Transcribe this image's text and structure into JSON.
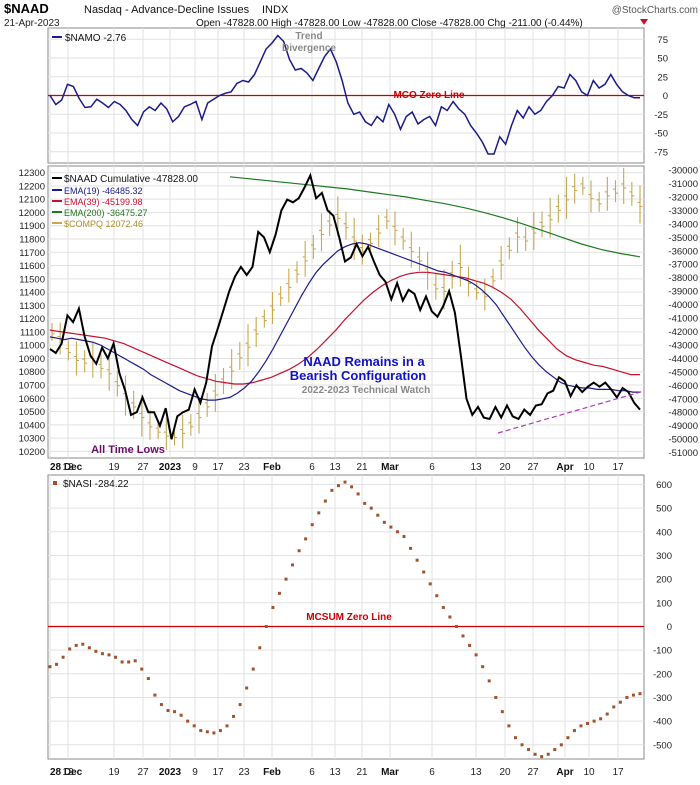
{
  "header": {
    "symbol": "$NAAD",
    "description": "Nasdaq - Advance-Decline Issues",
    "exchange": "INDX",
    "date": "21-Apr-2023",
    "quote_line": "Open -47828.00   High -47828.00   Low -47828.00   Close -47828.00   Chg -211.00 (-0.44%)",
    "watermark": "@StockCharts.com"
  },
  "colors": {
    "naad": "#000000",
    "namo": "#1a1a8c",
    "ema19": "#1a1a8c",
    "ema39": "#c8102e",
    "ema200": "#1e7a1e",
    "compq": "#c8a850",
    "nasi": "#a0522d",
    "zero_line": "#cc0000",
    "annot_blue": "#1010c8",
    "annot_purple": "#6a0d6a",
    "trend_dash": "#b03ab0",
    "grid": "#e2e2e2"
  },
  "chart_data": [
    {
      "type": "line",
      "title": "$NAMO -2.76",
      "series": [
        {
          "name": "$NAMO",
          "values": [
            0,
            -12,
            -6,
            15,
            12,
            -4,
            -16,
            -15,
            -5,
            -10,
            -16,
            -8,
            -12,
            -20,
            -32,
            -40,
            -22,
            -15,
            -20,
            -10,
            -18,
            -35,
            -28,
            -15,
            -12,
            -8,
            -32,
            -10,
            -5,
            0,
            3,
            5,
            16,
            20,
            18,
            28,
            45,
            62,
            70,
            80,
            72,
            48,
            34,
            36,
            30,
            20,
            36,
            52,
            62,
            45,
            20,
            -10,
            -25,
            -22,
            -35,
            -40,
            -28,
            -35,
            -12,
            -25,
            -45,
            -28,
            -22,
            -38,
            -32,
            -28,
            -40,
            -15,
            -20,
            -8,
            -18,
            -25,
            -40,
            -50,
            -62,
            -78,
            -78,
            -55,
            -65,
            -40,
            -20,
            -30,
            -15,
            -25,
            -20,
            -8,
            0,
            12,
            10,
            28,
            20,
            5,
            0,
            20,
            10,
            15,
            28,
            15,
            5,
            0,
            -3,
            -3
          ]
        }
      ],
      "ylim": [
        -90,
        90
      ],
      "yticks": [
        75,
        50,
        25,
        0,
        -25,
        -50,
        -75
      ],
      "annotations": [
        "Trend",
        "Divergence",
        "MCO Zero Line"
      ]
    },
    {
      "type": "line",
      "title": "$NAAD Cumulative -47828.00",
      "x_ticks": [
        "28 Dec",
        "12",
        "19",
        "27",
        "2023",
        "9",
        "17",
        "23",
        "Feb",
        "6",
        "13",
        "21",
        "Mar",
        "6",
        "13",
        "20",
        "27",
        "Apr",
        "10",
        "17"
      ],
      "ylim_left": [
        10150,
        12350
      ],
      "yticks_left": [
        12300,
        12200,
        12100,
        12000,
        11900,
        11800,
        11700,
        11600,
        11500,
        11400,
        11300,
        11200,
        11100,
        11000,
        10900,
        10800,
        10700,
        10600,
        10500,
        10400,
        10300,
        10200
      ],
      "ylim_right": [
        -51400,
        -29700
      ],
      "yticks_right": [
        -30000,
        -31000,
        -32000,
        -33000,
        -34000,
        -35000,
        -36000,
        -37000,
        -38000,
        -39000,
        -40000,
        -41000,
        -42000,
        -43000,
        -44000,
        -45000,
        -46000,
        -47000,
        -48000,
        -49000,
        -50000,
        -51000
      ],
      "legend": [
        "$NAAD Cumulative -47828.00",
        "EMA(19) -46485.32",
        "EMA(39) -45199.98",
        "EMA(200) -36475.27",
        "$COMPQ 12072.46"
      ],
      "series": [
        {
          "name": "$NAAD Cumulative",
          "values": [
            -43300,
            -43600,
            -42900,
            -40800,
            -41300,
            -40300,
            -42400,
            -43800,
            -44400,
            -43200,
            -44000,
            -42900,
            -45100,
            -46400,
            -48200,
            -48000,
            -46900,
            -48000,
            -48000,
            -49000,
            -47700,
            -50000,
            -48300,
            -48000,
            -47800,
            -46300,
            -47300,
            -45800,
            -43100,
            -41800,
            -40400,
            -39000,
            -37900,
            -37200,
            -37800,
            -37200,
            -34600,
            -35000,
            -36100,
            -34800,
            -33000,
            -32200,
            -32400,
            -32100,
            -31300,
            -30400,
            -32100,
            -31700,
            -33000,
            -33400,
            -35000,
            -36800,
            -36500,
            -35500,
            -36400,
            -35700,
            -36800,
            -37800,
            -38300,
            -39600,
            -38400,
            -39700,
            -38900,
            -39200,
            -40400,
            -39400,
            -40500,
            -40900,
            -40100,
            -39000,
            -40600,
            -43700,
            -47000,
            -48200,
            -47600,
            -48400,
            -48500,
            -47600,
            -48400,
            -47500,
            -48300,
            -48500,
            -47800,
            -48200,
            -47500,
            -47400,
            -46600,
            -46400,
            -45400,
            -45700,
            -46800,
            -46000,
            -46500,
            -46100,
            -45800,
            -46100,
            -45800,
            -46300,
            -46900,
            -46200,
            -46500,
            -47300,
            -47800
          ]
        },
        {
          "name": "EMA(19)",
          "values": [
            -42400,
            -42500,
            -42600,
            -42500,
            -42600,
            -42700,
            -42800,
            -43000,
            -43300,
            -43600,
            -43900,
            -44200,
            -44500,
            -44800,
            -45200,
            -45500,
            -45800,
            -46100,
            -46400,
            -46600,
            -46800,
            -47000,
            -47100,
            -47100,
            -47000,
            -46900,
            -46600,
            -46200,
            -45700,
            -45000,
            -44200,
            -43300,
            -42300,
            -41300,
            -40300,
            -39300,
            -38400,
            -37600,
            -37000,
            -36500,
            -36000,
            -35700,
            -35500,
            -35400,
            -35500,
            -35700,
            -35900,
            -36100,
            -36300,
            -36500,
            -36700,
            -36900,
            -37100,
            -37300,
            -37500,
            -37600,
            -37800,
            -38000,
            -38200,
            -38500,
            -38900,
            -39400,
            -40000,
            -40800,
            -41600,
            -42400,
            -43200,
            -43900,
            -44500,
            -45000,
            -45400,
            -45800,
            -46000,
            -46100,
            -46200,
            -46200,
            -46300,
            -46300,
            -46300,
            -46400,
            -46400,
            -46500,
            -46500
          ]
        },
        {
          "name": "EMA(39)",
          "values": [
            -41900,
            -42000,
            -42100,
            -42200,
            -42300,
            -42400,
            -42500,
            -42700,
            -42900,
            -43200,
            -43500,
            -43800,
            -44100,
            -44400,
            -44700,
            -45000,
            -45300,
            -45500,
            -45700,
            -45800,
            -45900,
            -45900,
            -45800,
            -45600,
            -45400,
            -45100,
            -44800,
            -44400,
            -43900,
            -43300,
            -42600,
            -41900,
            -41100,
            -40400,
            -39700,
            -39100,
            -38600,
            -38200,
            -37900,
            -37700,
            -37600,
            -37600,
            -37700,
            -37800,
            -37900,
            -38000,
            -38200,
            -38400,
            -38700,
            -39100,
            -39600,
            -40300,
            -41100,
            -41900,
            -42600,
            -43300,
            -43800,
            -44100,
            -44300,
            -44500,
            -44600,
            -44800,
            -45000,
            -45200,
            -45200
          ]
        },
        {
          "name": "EMA(200)",
          "values": [
            -30500,
            -30650,
            -30800,
            -30950,
            -31100,
            -31250,
            -31400,
            -31600,
            -31800,
            -32000,
            -32250,
            -32500,
            -32800,
            -33150,
            -33550,
            -34000,
            -34500,
            -35000,
            -35500,
            -35900,
            -36200,
            -36450
          ]
        },
        {
          "name": "$COMPQ",
          "values": [
            11100,
            11050,
            10960,
            10900,
            10880,
            10890,
            10840,
            10800,
            10710,
            10620,
            10550,
            10470,
            10400,
            10360,
            10330,
            10320,
            10350,
            10400,
            10470,
            10550,
            10640,
            10730,
            10820,
            10920,
            11000,
            11100,
            11200,
            11280,
            11370,
            11450,
            11550,
            11650,
            11740,
            11850,
            11920,
            11970,
            11900,
            11800,
            11720,
            11780,
            11860,
            11950,
            11880,
            11800,
            11720,
            11650,
            11560,
            11440,
            11420,
            11530,
            11600,
            11480,
            11410,
            11380,
            11500,
            11620,
            11730,
            11830,
            11800,
            11860,
            11910,
            11960,
            12030,
            12110,
            12180,
            12200,
            12120,
            12080,
            12140,
            12160,
            12200,
            12140,
            12060
          ]
        }
      ],
      "annotations": [
        "NAAD Remains in a",
        "Bearish Configuration",
        "2022-2023 Technical Watch",
        "All Time Lows"
      ]
    },
    {
      "type": "scatter",
      "title": "$NASI -284.22",
      "series": [
        {
          "name": "$NASI",
          "values": [
            -170,
            -160,
            -130,
            -95,
            -80,
            -75,
            -90,
            -105,
            -115,
            -120,
            -130,
            -150,
            -150,
            -145,
            -180,
            -220,
            -290,
            -330,
            -355,
            -360,
            -375,
            -400,
            -420,
            -440,
            -445,
            -450,
            -440,
            -420,
            -380,
            -330,
            -260,
            -180,
            -90,
            0,
            80,
            140,
            200,
            260,
            320,
            370,
            430,
            480,
            530,
            575,
            595,
            610,
            590,
            560,
            520,
            500,
            470,
            440,
            420,
            400,
            380,
            330,
            280,
            230,
            180,
            130,
            80,
            40,
            0,
            -40,
            -80,
            -120,
            -170,
            -230,
            -300,
            -360,
            -420,
            -470,
            -500,
            -520,
            -540,
            -550,
            -540,
            -520,
            -500,
            -470,
            -440,
            -420,
            -410,
            -400,
            -390,
            -370,
            -340,
            -320,
            -300,
            -290,
            -284
          ]
        }
      ],
      "ylim": [
        -560,
        640
      ],
      "yticks": [
        600,
        500,
        400,
        300,
        200,
        100,
        0,
        -100,
        -200,
        -300,
        -400,
        -500
      ],
      "annotations": [
        "MCSUM Zero Line"
      ]
    }
  ]
}
